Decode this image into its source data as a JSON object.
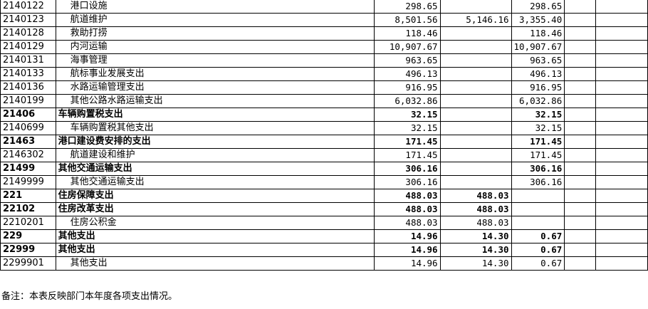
{
  "rows": [
    {
      "code": "2140122",
      "name": "港口设施",
      "c1": "298.65",
      "c2": "",
      "c3": "298.65",
      "bold": false
    },
    {
      "code": "2140123",
      "name": "航道维护",
      "c1": "8,501.56",
      "c2": "5,146.16",
      "c3": "3,355.40",
      "bold": false
    },
    {
      "code": "2140128",
      "name": "救助打捞",
      "c1": "118.46",
      "c2": "",
      "c3": "118.46",
      "bold": false
    },
    {
      "code": "2140129",
      "name": "内河运输",
      "c1": "10,907.67",
      "c2": "",
      "c3": "10,907.67",
      "bold": false
    },
    {
      "code": "2140131",
      "name": "海事管理",
      "c1": "963.65",
      "c2": "",
      "c3": "963.65",
      "bold": false
    },
    {
      "code": "2140133",
      "name": "航标事业发展支出",
      "c1": "496.13",
      "c2": "",
      "c3": "496.13",
      "bold": false
    },
    {
      "code": "2140136",
      "name": "水路运输管理支出",
      "c1": "916.95",
      "c2": "",
      "c3": "916.95",
      "bold": false
    },
    {
      "code": "2140199",
      "name": "其他公路水路运输支出",
      "c1": "6,032.86",
      "c2": "",
      "c3": "6,032.86",
      "bold": false
    },
    {
      "code": "21406",
      "name": "车辆购置税支出",
      "c1": "32.15",
      "c2": "",
      "c3": "32.15",
      "bold": true
    },
    {
      "code": "2140699",
      "name": "车辆购置税其他支出",
      "c1": "32.15",
      "c2": "",
      "c3": "32.15",
      "bold": false
    },
    {
      "code": "21463",
      "name": "港口建设费安排的支出",
      "c1": "171.45",
      "c2": "",
      "c3": "171.45",
      "bold": true
    },
    {
      "code": "2146302",
      "name": "航道建设和维护",
      "c1": "171.45",
      "c2": "",
      "c3": "171.45",
      "bold": false
    },
    {
      "code": "21499",
      "name": "其他交通运输支出",
      "c1": "306.16",
      "c2": "",
      "c3": "306.16",
      "bold": true
    },
    {
      "code": "2149999",
      "name": "其他交通运输支出",
      "c1": "306.16",
      "c2": "",
      "c3": "306.16",
      "bold": false
    },
    {
      "code": "221",
      "name": "住房保障支出",
      "c1": "488.03",
      "c2": "488.03",
      "c3": "",
      "bold": true
    },
    {
      "code": "22102",
      "name": "住房改革支出",
      "c1": "488.03",
      "c2": "488.03",
      "c3": "",
      "bold": true
    },
    {
      "code": "2210201",
      "name": "住房公积金",
      "c1": "488.03",
      "c2": "488.03",
      "c3": "",
      "bold": false
    },
    {
      "code": "229",
      "name": "其他支出",
      "c1": "14.96",
      "c2": "14.30",
      "c3": "0.67",
      "bold": true
    },
    {
      "code": "22999",
      "name": "其他支出",
      "c1": "14.96",
      "c2": "14.30",
      "c3": "0.67",
      "bold": true
    },
    {
      "code": "2299901",
      "name": "其他支出",
      "c1": "14.96",
      "c2": "14.30",
      "c3": "0.67",
      "bold": false
    }
  ],
  "note": "备注：本表反映部门本年度各项支出情况。"
}
